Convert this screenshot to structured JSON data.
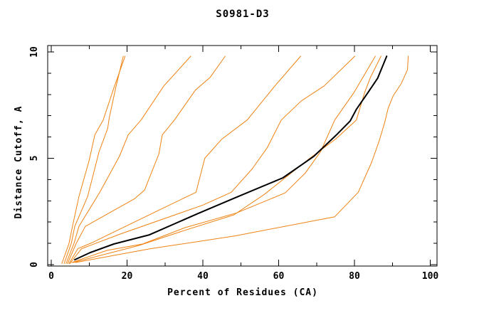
{
  "chart_data": {
    "type": "line",
    "title": "S0981-D3",
    "xlabel": "Percent of Residues (CA)",
    "ylabel": "Distance Cutoff, A",
    "xlim": [
      0,
      100
    ],
    "ylim": [
      0,
      10
    ],
    "x_ticks_major": [
      0,
      20,
      40,
      60,
      80,
      100
    ],
    "x_ticks_minor": [
      10,
      30,
      50,
      70,
      90
    ],
    "y_ticks_major": [
      0,
      5,
      10
    ],
    "y_ticks_minor": [
      1,
      2,
      3,
      4,
      6,
      7,
      8,
      9
    ],
    "grid": false,
    "legend": false,
    "frame": "full-box-inward-ticks",
    "colors": {
      "model_line": "#ef8211",
      "highlight_line": "#000000",
      "frame": "#000000"
    },
    "series": [
      {
        "name": "orange-1",
        "role": "model",
        "color": "#ef8211",
        "width": 1,
        "points": [
          [
            2.8,
            0.05
          ],
          [
            4.7,
            1.0
          ],
          [
            5.6,
            1.8
          ],
          [
            7.3,
            3.2
          ],
          [
            10.0,
            4.9
          ],
          [
            11.5,
            6.1
          ],
          [
            13.7,
            6.8
          ],
          [
            16.5,
            8.3
          ],
          [
            19.5,
            9.8
          ]
        ]
      },
      {
        "name": "orange-2",
        "role": "model",
        "color": "#ef8211",
        "width": 1,
        "points": [
          [
            3.4,
            0.05
          ],
          [
            5.3,
            1.0
          ],
          [
            6.2,
            1.8
          ],
          [
            9.6,
            3.2
          ],
          [
            12.6,
            5.3
          ],
          [
            14.9,
            6.4
          ],
          [
            15.3,
            6.9
          ],
          [
            17.0,
            8.3
          ],
          [
            19.0,
            9.8
          ]
        ]
      },
      {
        "name": "orange-3",
        "role": "model",
        "color": "#ef8211",
        "width": 1,
        "points": [
          [
            3.9,
            0.05
          ],
          [
            6.0,
            1.0
          ],
          [
            7.3,
            1.8
          ],
          [
            12.8,
            3.4
          ],
          [
            18.0,
            5.1
          ],
          [
            20.3,
            6.1
          ],
          [
            23.7,
            6.8
          ],
          [
            29.7,
            8.4
          ],
          [
            36.8,
            9.8
          ]
        ]
      },
      {
        "name": "orange-4",
        "role": "model",
        "color": "#ef8211",
        "width": 1,
        "points": [
          [
            4.3,
            0.05
          ],
          [
            6.6,
            1.0
          ],
          [
            9.0,
            1.8
          ],
          [
            22.0,
            3.1
          ],
          [
            24.6,
            3.5
          ],
          [
            28.4,
            5.2
          ],
          [
            29.3,
            6.1
          ],
          [
            32.5,
            6.8
          ],
          [
            38.0,
            8.2
          ],
          [
            41.9,
            8.8
          ],
          [
            45.9,
            9.8
          ]
        ]
      },
      {
        "name": "orange-5",
        "role": "model",
        "color": "#ef8211",
        "width": 1,
        "points": [
          [
            4.7,
            0.05
          ],
          [
            7.0,
            0.75
          ],
          [
            11.0,
            1.05
          ],
          [
            15.0,
            1.4
          ],
          [
            30.0,
            2.7
          ],
          [
            38.2,
            3.4
          ],
          [
            40.5,
            5.0
          ],
          [
            45.0,
            5.9
          ],
          [
            51.7,
            6.8
          ],
          [
            59.0,
            8.4
          ],
          [
            65.8,
            9.8
          ]
        ]
      },
      {
        "name": "orange-6",
        "role": "model",
        "color": "#ef8211",
        "width": 1,
        "points": [
          [
            4.9,
            0.05
          ],
          [
            8.0,
            0.75
          ],
          [
            18.4,
            1.45
          ],
          [
            40.0,
            2.8
          ],
          [
            47.5,
            3.4
          ],
          [
            53.0,
            4.5
          ],
          [
            57.0,
            5.5
          ],
          [
            60.7,
            6.8
          ],
          [
            66.0,
            7.7
          ],
          [
            72.0,
            8.4
          ],
          [
            80.1,
            9.8
          ]
        ]
      },
      {
        "name": "orange-7",
        "role": "model",
        "color": "#ef8211",
        "width": 1,
        "points": [
          [
            5.4,
            0.1
          ],
          [
            14.7,
            0.67
          ],
          [
            24.1,
            0.97
          ],
          [
            35.3,
            1.74
          ],
          [
            48.9,
            2.43
          ],
          [
            61.7,
            3.37
          ],
          [
            67.0,
            4.3
          ],
          [
            71.1,
            5.32
          ],
          [
            74.8,
            6.8
          ],
          [
            79.9,
            8.1
          ],
          [
            85.5,
            9.8
          ]
        ]
      },
      {
        "name": "orange-8",
        "role": "model",
        "color": "#ef8211",
        "width": 1,
        "points": [
          [
            5.8,
            0.1
          ],
          [
            23.1,
            0.9
          ],
          [
            35.0,
            1.6
          ],
          [
            48.2,
            2.34
          ],
          [
            56.2,
            3.3
          ],
          [
            68.2,
            5.0
          ],
          [
            75.0,
            5.9
          ],
          [
            80.5,
            6.8
          ],
          [
            82.7,
            8.1
          ],
          [
            84.2,
            8.8
          ],
          [
            87.0,
            9.8
          ]
        ]
      },
      {
        "name": "orange-9",
        "role": "model",
        "color": "#ef8211",
        "width": 1,
        "points": [
          [
            6.4,
            0.1
          ],
          [
            25.9,
            0.74
          ],
          [
            48.5,
            1.35
          ],
          [
            74.8,
            2.25
          ],
          [
            81.0,
            3.4
          ],
          [
            84.5,
            4.8
          ],
          [
            86.5,
            5.8
          ],
          [
            88.0,
            6.7
          ],
          [
            88.9,
            7.36
          ],
          [
            90.2,
            7.93
          ],
          [
            92.3,
            8.5
          ],
          [
            94.0,
            9.16
          ],
          [
            94.2,
            9.8
          ]
        ]
      },
      {
        "name": "black-highlight",
        "role": "highlighted-model",
        "color": "#000000",
        "width": 2,
        "points": [
          [
            6.2,
            0.23
          ],
          [
            10.3,
            0.57
          ],
          [
            16.5,
            0.97
          ],
          [
            25.9,
            1.4
          ],
          [
            38.7,
            2.4
          ],
          [
            48.5,
            3.14
          ],
          [
            61.1,
            4.08
          ],
          [
            69.2,
            5.08
          ],
          [
            75.2,
            6.09
          ],
          [
            78.9,
            6.76
          ],
          [
            80.5,
            7.3
          ],
          [
            83.6,
            8.1
          ],
          [
            86.1,
            8.76
          ],
          [
            88.5,
            9.8
          ]
        ]
      }
    ]
  }
}
